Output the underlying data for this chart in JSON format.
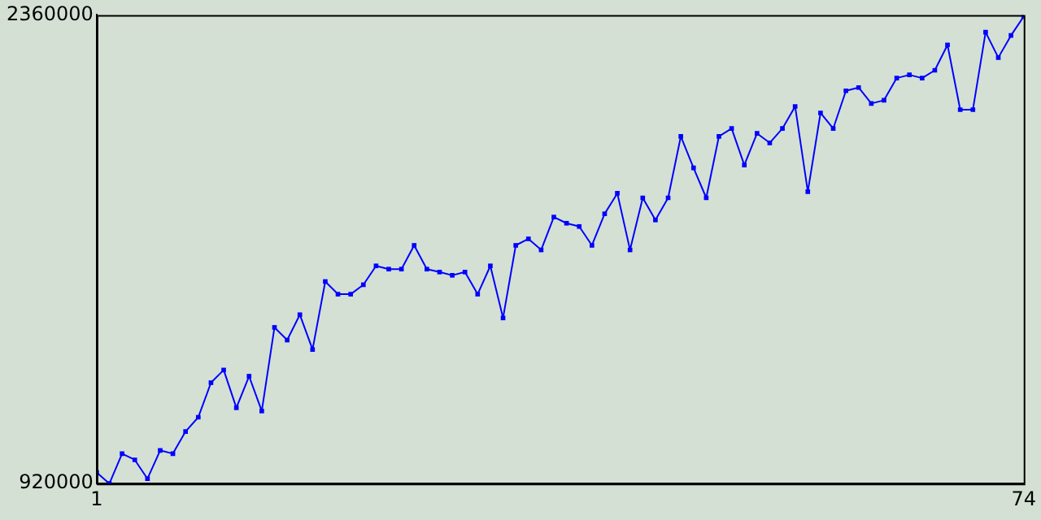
{
  "chart_data": {
    "type": "line",
    "x": [
      1,
      2,
      3,
      4,
      5,
      6,
      7,
      8,
      9,
      10,
      11,
      12,
      13,
      14,
      15,
      16,
      17,
      18,
      19,
      20,
      21,
      22,
      23,
      24,
      25,
      26,
      27,
      28,
      29,
      30,
      31,
      32,
      33,
      34,
      35,
      36,
      37,
      38,
      39,
      40,
      41,
      42,
      43,
      44,
      45,
      46,
      47,
      48,
      49,
      50,
      51,
      52,
      53,
      54,
      55,
      56,
      57,
      58,
      59,
      60,
      61,
      62,
      63,
      64,
      65,
      66,
      67,
      68,
      69,
      70,
      71,
      72,
      73,
      74
    ],
    "series": [
      {
        "color": "#0000ff",
        "values": [
          954000,
          920000,
          1012000,
          993000,
          935000,
          1022000,
          1012000,
          1080000,
          1124000,
          1230000,
          1269000,
          1153000,
          1250000,
          1143000,
          1400000,
          1361000,
          1439000,
          1332000,
          1541000,
          1502000,
          1502000,
          1531000,
          1589000,
          1579000,
          1579000,
          1652000,
          1579000,
          1570000,
          1560000,
          1570000,
          1502000,
          1589000,
          1429000,
          1652000,
          1672000,
          1638000,
          1739000,
          1720000,
          1710000,
          1652000,
          1749000,
          1812000,
          1638000,
          1798000,
          1730000,
          1798000,
          1987000,
          1890000,
          1798000,
          1987000,
          2011000,
          1899000,
          1996000,
          1967000,
          2011000,
          2079000,
          1817000,
          2059000,
          2011000,
          2127000,
          2137000,
          2088000,
          2098000,
          2166000,
          2176000,
          2166000,
          2190000,
          2268000,
          2069000,
          2069000,
          2307000,
          2229000,
          2297000,
          2355000
        ]
      }
    ],
    "xlim": [
      1,
      74
    ],
    "xticks": [
      1,
      74
    ],
    "ylim": [
      920000,
      2360000
    ],
    "yticks": [
      920000,
      2360000
    ],
    "marker": "square",
    "line_style": "solid",
    "grid": false,
    "legend": false
  }
}
